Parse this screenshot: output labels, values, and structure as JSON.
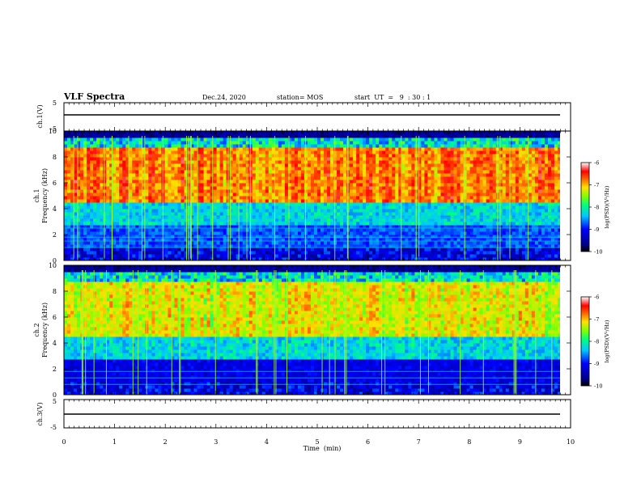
{
  "header": {
    "title": "VLF Spectra",
    "date": "Dec.24, 2020",
    "station": "station= MOS",
    "start": "start  UT  =   9  : 30 : 1"
  },
  "chart_data": [
    {
      "type": "line",
      "panel": "ch1-waveform",
      "ylabel": "ch.1(V)",
      "ylim": [
        -5,
        5
      ],
      "yticks": [
        "5",
        "-5"
      ],
      "series_level": 0
    },
    {
      "type": "heatmap",
      "panel": "ch1-spectrogram",
      "ylabel": "ch.1\nFrequency (kHz)",
      "ylabel_line1": "ch.1",
      "ylabel_line2": "Frequency (kHz)",
      "ylim": [
        0,
        10
      ],
      "yticks": [
        "0",
        "2",
        "4",
        "6",
        "8",
        "10"
      ],
      "xlim": [
        0,
        10
      ],
      "colorbar": {
        "label": "log(PSD)(V²/Hz)",
        "range": [
          -10,
          -6
        ],
        "ticks": [
          "-6",
          "-7",
          "-8",
          "-9",
          "-10"
        ]
      }
    },
    {
      "type": "heatmap",
      "panel": "ch2-spectrogram",
      "ylabel_line1": "ch.2",
      "ylabel_line2": "Frequency (kHz)",
      "ylim": [
        0,
        10
      ],
      "yticks": [
        "0",
        "2",
        "4",
        "6",
        "8",
        "10"
      ],
      "xlim": [
        0,
        10
      ],
      "colorbar": {
        "label": "log(PSD)(V²/Hz)",
        "range": [
          -10,
          -6
        ],
        "ticks": [
          "-6",
          "-7",
          "-8",
          "-9",
          "-10"
        ]
      }
    },
    {
      "type": "line",
      "panel": "ch3-waveform",
      "ylabel": "ch.3(V)",
      "ylim": [
        -5,
        5
      ],
      "yticks": [
        "5",
        "-5"
      ],
      "series_level": 0
    }
  ],
  "xaxis": {
    "label": "Time  (min)",
    "ticks": [
      "0",
      "1",
      "2",
      "3",
      "4",
      "5",
      "6",
      "7",
      "8",
      "9",
      "10"
    ]
  },
  "colors": {
    "colormap": [
      "#000088",
      "#0000ff",
      "#00c8ff",
      "#00ff80",
      "#c8ff00",
      "#ff8000",
      "#ff0000",
      "#ffffff"
    ]
  }
}
